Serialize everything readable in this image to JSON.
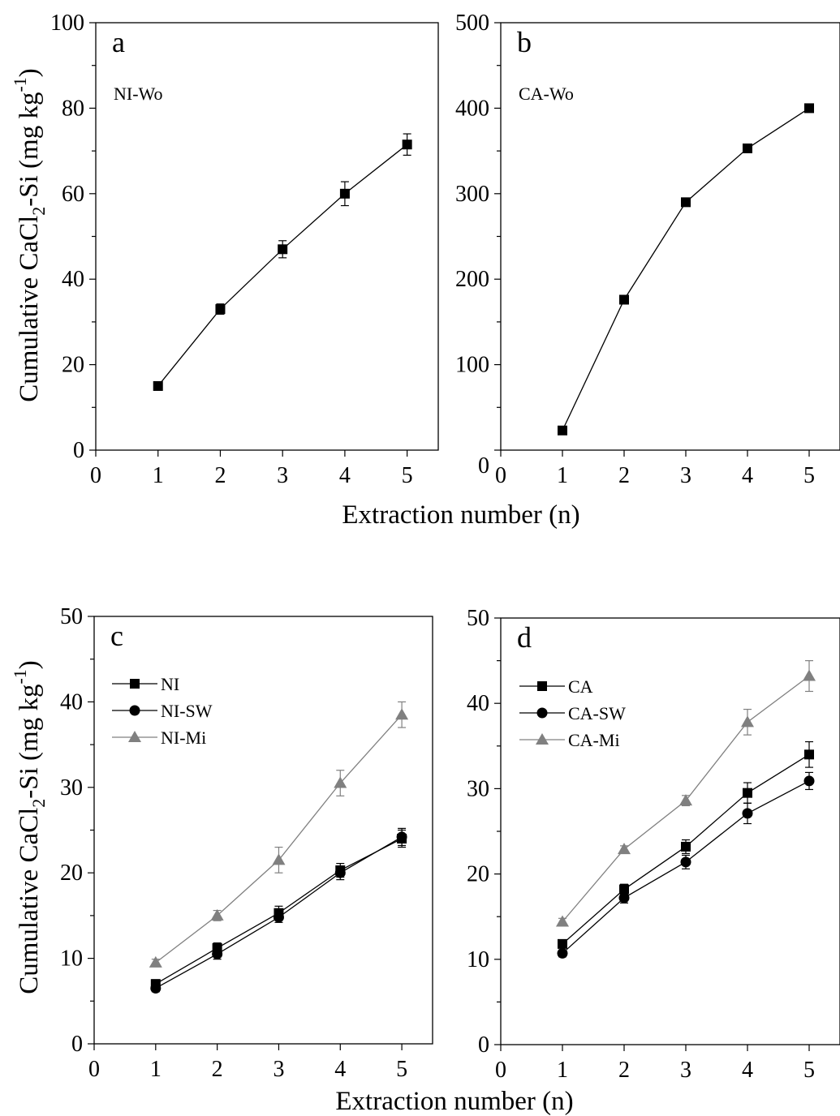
{
  "figure": {
    "ylabel_parts": [
      "Cumulative CaCl",
      "2",
      "-Si (mg kg",
      "-1",
      ")"
    ],
    "xlabel": "Extraction number (n)"
  },
  "chart_data": [
    {
      "panel": "a",
      "type": "line",
      "annotation": "NI-Wo",
      "x": [
        1,
        2,
        3,
        4,
        5
      ],
      "xlim": [
        0,
        5.5
      ],
      "ylim": [
        0,
        100
      ],
      "xticks": [
        "0",
        "1",
        "2",
        "3",
        "4",
        "5"
      ],
      "yticks": [
        "0",
        "20",
        "40",
        "60",
        "80",
        "100"
      ],
      "legend": null,
      "series": [
        {
          "name": "",
          "marker": "square",
          "color": "#000000",
          "values": [
            15,
            33,
            47,
            60,
            71.5
          ],
          "err": [
            0.8,
            1.2,
            2.0,
            2.8,
            2.5
          ]
        }
      ]
    },
    {
      "panel": "b",
      "type": "line",
      "annotation": "CA-Wo",
      "x": [
        1,
        2,
        3,
        4,
        5
      ],
      "xlim": [
        0,
        5.5
      ],
      "ylim": [
        0,
        500
      ],
      "xticks": [
        "0",
        "1",
        "2",
        "3",
        "4",
        "5"
      ],
      "yticks": [
        "0",
        "100",
        "200",
        "300",
        "400",
        "500"
      ],
      "legend": null,
      "series": [
        {
          "name": "",
          "marker": "square",
          "color": "#000000",
          "values": [
            23,
            176,
            290,
            353,
            400
          ],
          "err": [
            0,
            0,
            0,
            0,
            0
          ]
        }
      ]
    },
    {
      "panel": "c",
      "type": "line",
      "annotation": "",
      "x": [
        1,
        2,
        3,
        4,
        5
      ],
      "xlim": [
        0,
        5.5
      ],
      "ylim": [
        0,
        50
      ],
      "xticks": [
        "0",
        "1",
        "2",
        "3",
        "4",
        "5"
      ],
      "yticks": [
        "0",
        "10",
        "20",
        "30",
        "40",
        "50"
      ],
      "legend": "top-left",
      "series": [
        {
          "name": "NI",
          "marker": "square",
          "color": "#000000",
          "values": [
            7,
            11.2,
            15.3,
            20.3,
            24.0
          ],
          "err": [
            0.5,
            0.6,
            0.8,
            0.8,
            1.0
          ]
        },
        {
          "name": "NI-SW",
          "marker": "circle",
          "color": "#000000",
          "values": [
            6.5,
            10.5,
            14.8,
            20.0,
            24.2
          ],
          "err": [
            0.4,
            0.6,
            0.6,
            0.8,
            1.0
          ]
        },
        {
          "name": "NI-Mi",
          "marker": "triangle",
          "color": "#808080",
          "values": [
            9.5,
            15.0,
            21.5,
            30.5,
            38.5
          ],
          "err": [
            0.4,
            0.6,
            1.5,
            1.5,
            1.5
          ]
        }
      ]
    },
    {
      "panel": "d",
      "type": "line",
      "annotation": "",
      "x": [
        1,
        2,
        3,
        4,
        5
      ],
      "xlim": [
        0,
        5.5
      ],
      "ylim": [
        0,
        50
      ],
      "xticks": [
        "0",
        "1",
        "2",
        "3",
        "4",
        "5"
      ],
      "yticks": [
        "0",
        "10",
        "20",
        "30",
        "40",
        "50"
      ],
      "legend": "top-left",
      "series": [
        {
          "name": "CA",
          "marker": "square",
          "color": "#000000",
          "values": [
            11.8,
            18.2,
            23.2,
            29.5,
            34.0
          ],
          "err": [
            0.4,
            0.6,
            0.8,
            1.2,
            1.5
          ]
        },
        {
          "name": "CA-SW",
          "marker": "circle",
          "color": "#000000",
          "values": [
            10.7,
            17.2,
            21.4,
            27.1,
            30.9
          ],
          "err": [
            0.4,
            0.6,
            0.8,
            1.2,
            1.0
          ]
        },
        {
          "name": "CA-Mi",
          "marker": "triangle",
          "color": "#808080",
          "values": [
            14.4,
            22.9,
            28.6,
            37.8,
            43.2
          ],
          "err": [
            0.4,
            0.4,
            0.6,
            1.5,
            1.8
          ]
        }
      ]
    }
  ]
}
